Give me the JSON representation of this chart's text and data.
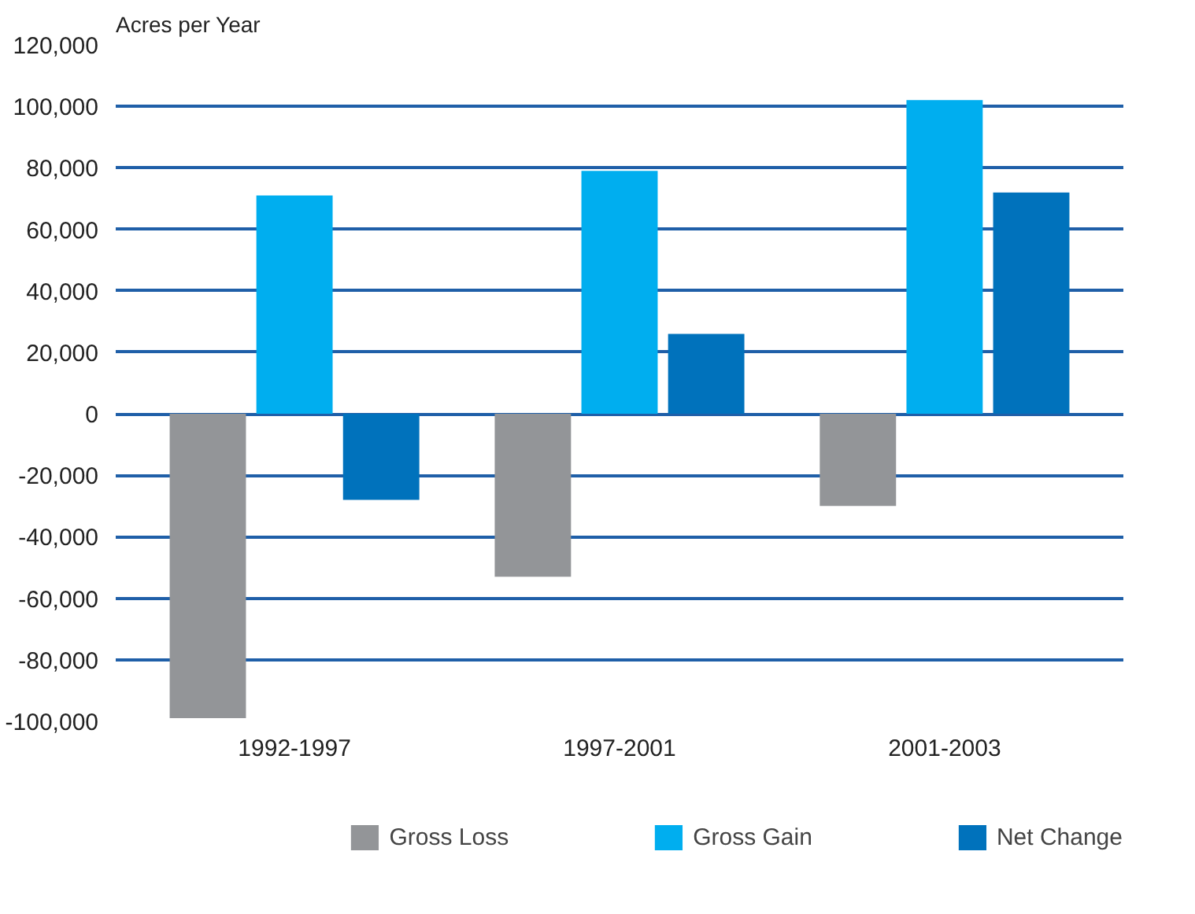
{
  "chart_data": {
    "type": "bar",
    "ylabel": "Acres per Year",
    "categories": [
      "1992-1997",
      "1997-2001",
      "2001-2003"
    ],
    "series": [
      {
        "name": "Gross Loss",
        "color": "#939598",
        "values": [
          -99000,
          -53000,
          -30000
        ]
      },
      {
        "name": "Gross Gain",
        "color": "#00aeef",
        "values": [
          71000,
          79000,
          102000
        ]
      },
      {
        "name": "Net Change",
        "color": "#0072bc",
        "values": [
          -28000,
          26000,
          72000
        ]
      }
    ],
    "ylim": [
      -100000,
      120000
    ],
    "yticks": [
      {
        "value": -100000,
        "label": "-100,000"
      },
      {
        "value": -80000,
        "label": "-80,000"
      },
      {
        "value": -60000,
        "label": "-60,000"
      },
      {
        "value": -40000,
        "label": "-40,000"
      },
      {
        "value": -20000,
        "label": "-20,000"
      },
      0,
      {
        "value": 20000,
        "label": "20,000"
      },
      {
        "value": 40000,
        "label": "40,000"
      },
      {
        "value": 60000,
        "label": "60,000"
      },
      {
        "value": 80000,
        "label": "80,000"
      },
      {
        "value": 100000,
        "label": "100,000"
      },
      {
        "value": 120000,
        "label": "120,000"
      }
    ],
    "grid": "y",
    "legend": "bottom"
  }
}
